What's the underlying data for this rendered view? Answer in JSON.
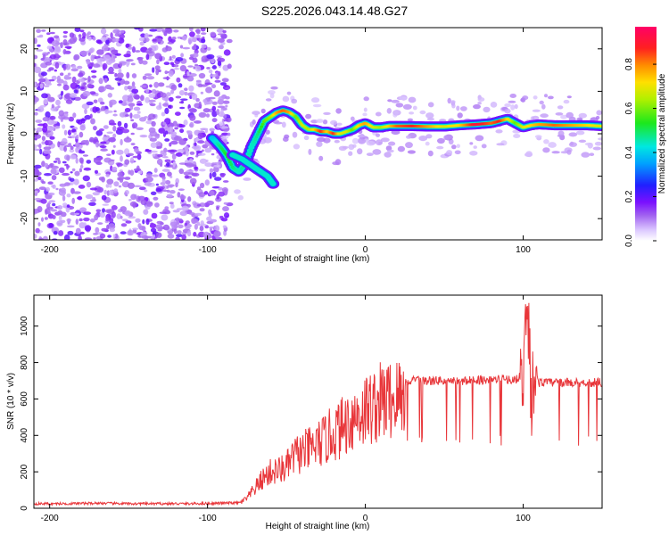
{
  "title": "S225.2026.043.14.48.G27",
  "chart_data": [
    {
      "type": "heatmap",
      "xlabel": "Height of straight line (km)",
      "ylabel": "Frequency (Hz)",
      "xlim": [
        -210,
        150
      ],
      "ylim": [
        -25,
        25
      ],
      "xticks": [
        -200,
        -100,
        0,
        100
      ],
      "yticks": [
        -20,
        -10,
        0,
        10,
        20
      ],
      "colorbar": {
        "label": "Normalized spectral amplitude",
        "range": [
          0.0,
          0.97
        ],
        "ticks": [
          0.0,
          0.2,
          0.4,
          0.6,
          0.8
        ],
        "colors": [
          "#f0e4ff",
          "#b27cf2",
          "#8a1cff",
          "#1a1aff",
          "#00ccff",
          "#00e0a0",
          "#1fe81f",
          "#c8f000",
          "#ffe000",
          "#ff8000",
          "#ff1a1a",
          "#ff0066"
        ]
      },
      "noise_region_x": [
        -210,
        -86
      ],
      "ridge": {
        "x": [
          -97,
          -92,
          -88,
          -84,
          -80,
          -76,
          -72,
          -68,
          -64,
          -60,
          -56,
          -52,
          -48,
          -44,
          -40,
          -36,
          -32,
          -28,
          -24,
          -20,
          -16,
          -12,
          -8,
          -4,
          0,
          5,
          10,
          15,
          20,
          30,
          40,
          50,
          60,
          70,
          80,
          85,
          90,
          95,
          100,
          105,
          110,
          120,
          130,
          140,
          150
        ],
        "frequency": [
          -1,
          -3,
          -5,
          -8,
          -9,
          -7,
          -3,
          0,
          3,
          4,
          5,
          5.5,
          5,
          4,
          2,
          1,
          1,
          0.5,
          0.5,
          0,
          0,
          0.5,
          1,
          2,
          2.5,
          1.5,
          1.5,
          1.8,
          1.8,
          1.8,
          1.7,
          1.7,
          2,
          2.2,
          2.5,
          3,
          3.5,
          2.5,
          1.5,
          2,
          2.2,
          2,
          2,
          2,
          1.8
        ],
        "amplitude": [
          0.4,
          0.5,
          0.55,
          0.5,
          0.45,
          0.5,
          0.45,
          0.5,
          0.6,
          0.65,
          0.8,
          0.85,
          0.8,
          0.6,
          0.7,
          0.65,
          0.75,
          0.9,
          0.75,
          0.9,
          0.7,
          0.7,
          0.6,
          0.75,
          0.8,
          0.7,
          0.65,
          0.75,
          0.85,
          0.9,
          0.8,
          0.7,
          0.75,
          0.95,
          0.85,
          0.9,
          0.75,
          0.6,
          0.7,
          0.75,
          0.8,
          0.85,
          0.8,
          0.75,
          0.7
        ]
      },
      "lower_branch": {
        "x": [
          -84,
          -78,
          -72,
          -66,
          -62,
          -58
        ],
        "frequency": [
          -5,
          -6,
          -7.5,
          -9,
          -10,
          -12
        ]
      }
    },
    {
      "type": "line",
      "xlabel": "Height of straight line (km)",
      "ylabel": "SNR (10 * v/v)",
      "xlim": [
        -210,
        150
      ],
      "ylim": [
        0,
        1170
      ],
      "xticks": [
        -200,
        -100,
        0,
        100
      ],
      "yticks": [
        0,
        200,
        400,
        600,
        800,
        1000
      ],
      "series": [
        {
          "name": "SNR",
          "color": "#e8363a",
          "x": [
            -210,
            -190,
            -170,
            -150,
            -130,
            -110,
            -90,
            -80,
            -75,
            -70,
            -65,
            -60,
            -55,
            -50,
            -45,
            -40,
            -35,
            -30,
            -25,
            -20,
            -15,
            -10,
            -5,
            0,
            5,
            10,
            15,
            20,
            25,
            30,
            40,
            50,
            60,
            70,
            80,
            90,
            95,
            100,
            103,
            105,
            108,
            110,
            120,
            130,
            140,
            150
          ],
          "y": [
            25,
            25,
            28,
            25,
            25,
            25,
            28,
            30,
            60,
            120,
            180,
            220,
            230,
            250,
            320,
            340,
            360,
            390,
            420,
            460,
            490,
            540,
            570,
            600,
            620,
            650,
            660,
            670,
            690,
            700,
            700,
            700,
            695,
            705,
            705,
            710,
            700,
            750,
            1100,
            600,
            800,
            690,
            690,
            690,
            690,
            690
          ]
        }
      ]
    }
  ]
}
